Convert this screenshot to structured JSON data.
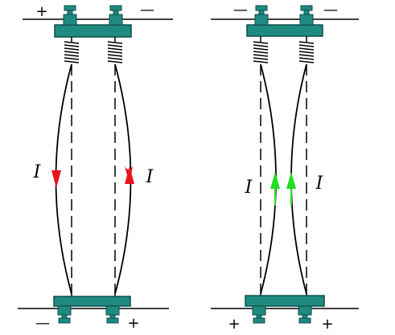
{
  "colors": {
    "block": "#1f8a80",
    "block_dark": "#0d4e48",
    "wire": "#000000",
    "arrow_opposite": "#e8141c",
    "arrow_same": "#22dd22"
  },
  "left_panel": {
    "current_direction": "opposite",
    "interaction": "repel",
    "top_terminals": {
      "left": "+",
      "right": "—"
    },
    "bottom_terminals": {
      "left": "—",
      "right": "+"
    },
    "current_labels": {
      "left": "I",
      "right": "I"
    }
  },
  "right_panel": {
    "current_direction": "same",
    "interaction": "attract",
    "top_terminals": {
      "left": "—",
      "right": "—"
    },
    "bottom_terminals": {
      "left": "+",
      "right": "+"
    },
    "current_labels": {
      "left": "I",
      "right": "I"
    }
  }
}
